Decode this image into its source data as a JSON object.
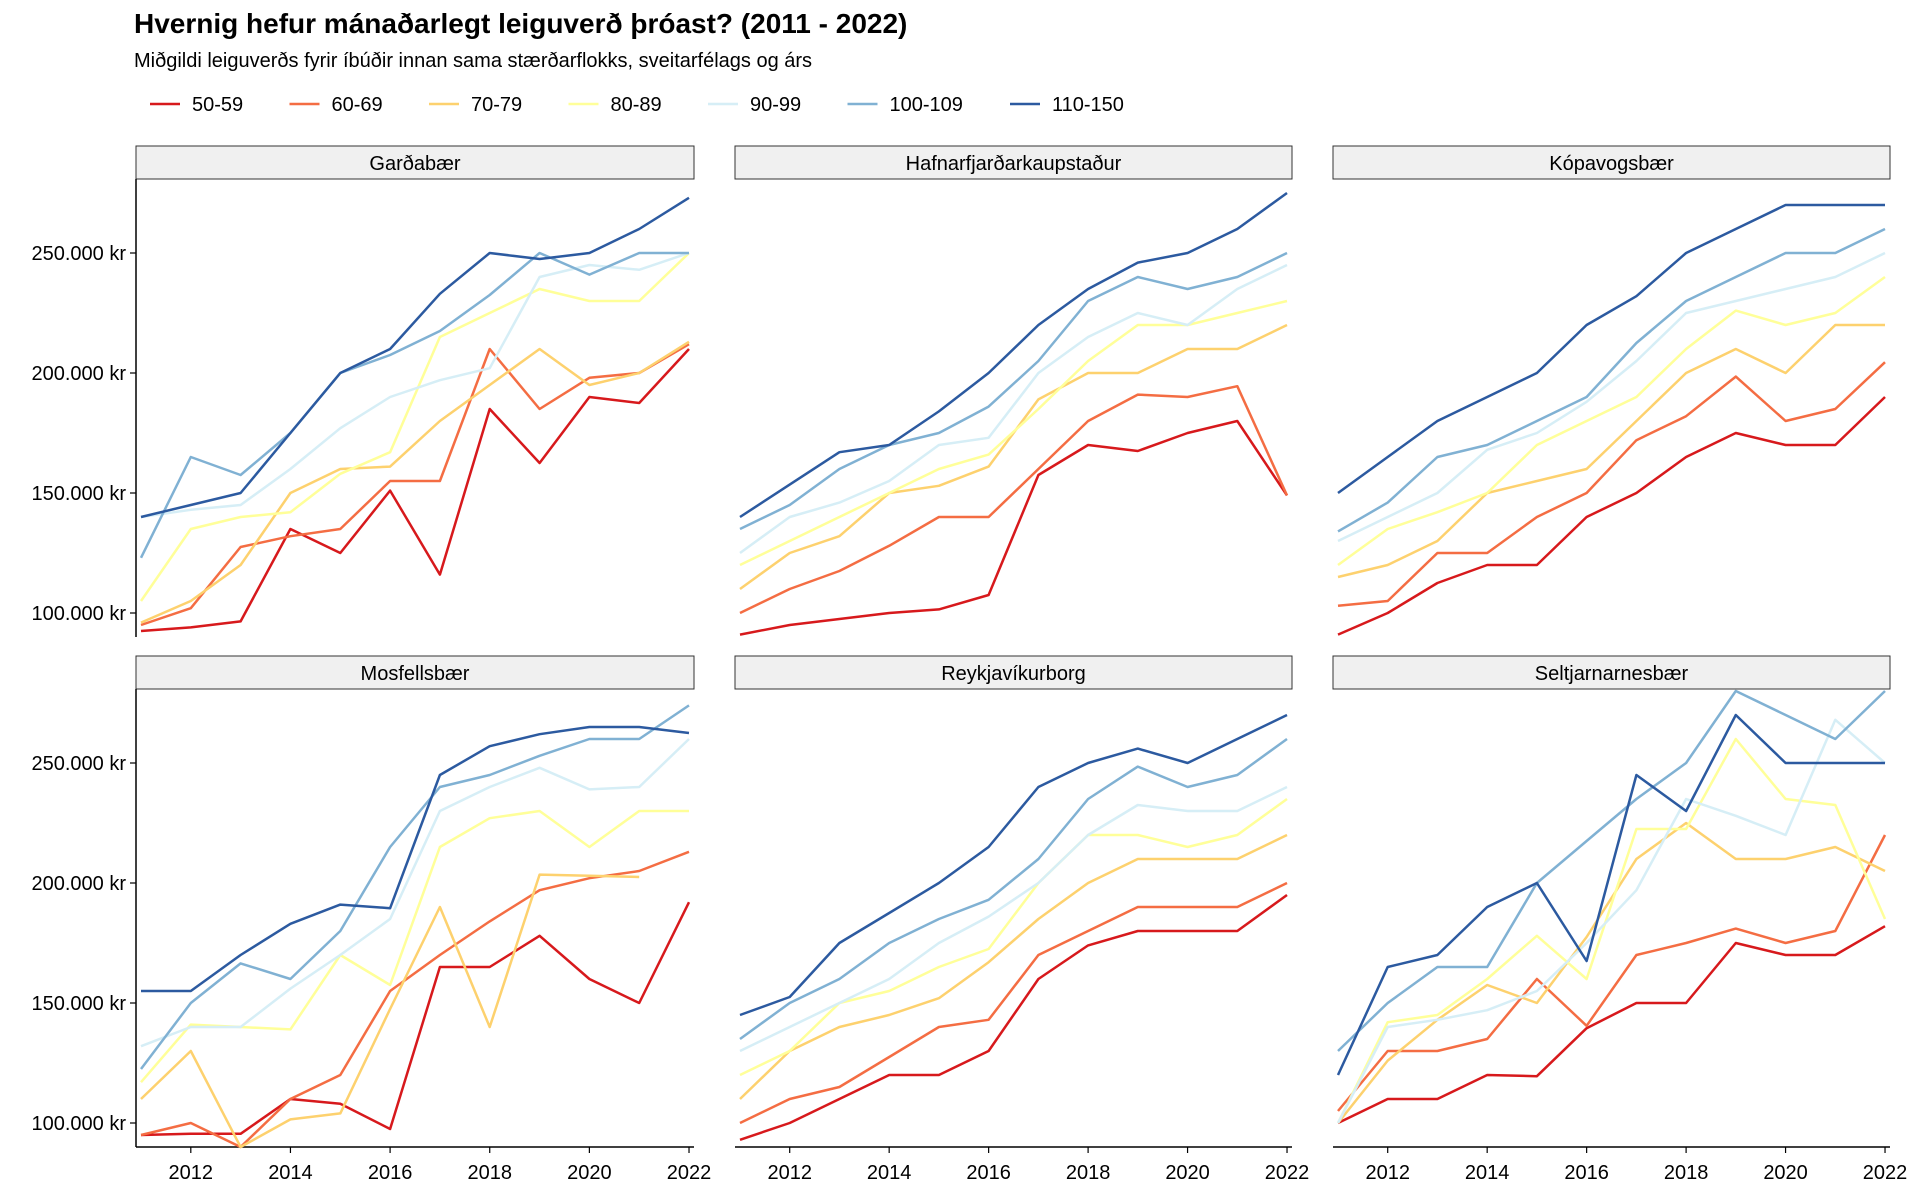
{
  "chart_data": {
    "type": "line",
    "title": "Hvernig hefur mánaðarlegt leiguverð þróast? (2011 - 2022)",
    "subtitle": "Miðgildi leiguverðs fyrir íbúðir innan sama stærðarflokks, sveitarfélags og árs",
    "legend_position": "top",
    "x": [
      2011,
      2012,
      2013,
      2014,
      2015,
      2016,
      2017,
      2018,
      2019,
      2020,
      2021,
      2022
    ],
    "x_ticks": [
      2012,
      2014,
      2016,
      2018,
      2020,
      2022
    ],
    "y_ticks": [
      100000,
      150000,
      200000,
      250000
    ],
    "y_tick_labels": [
      "100.000 kr",
      "150.000 kr",
      "200.000 kr",
      "250.000 kr"
    ],
    "xlim": [
      2010.9,
      2022.1
    ],
    "ylim": [
      90000,
      280000
    ],
    "grid": false,
    "series_styles": [
      {
        "name": "50-59",
        "color": "#d7191c"
      },
      {
        "name": "60-69",
        "color": "#f46d43"
      },
      {
        "name": "70-79",
        "color": "#fdd16e"
      },
      {
        "name": "80-89",
        "color": "#ffff99"
      },
      {
        "name": "90-99",
        "color": "#d6eef6"
      },
      {
        "name": "100-109",
        "color": "#80b1d3"
      },
      {
        "name": "110-150",
        "color": "#2c5aa0"
      }
    ],
    "panels": [
      {
        "name": "Garðabær",
        "series": [
          {
            "name": "50-59",
            "values": [
              92500,
              94000,
              96500,
              135000,
              125000,
              151000,
              116000,
              185000,
              162500,
              190000,
              187500,
              210000
            ]
          },
          {
            "name": "60-69",
            "values": [
              95000,
              102000,
              127500,
              132000,
              135000,
              155000,
              155000,
              210000,
              185000,
              198000,
              200000,
              212000
            ]
          },
          {
            "name": "70-79",
            "values": [
              96000,
              105000,
              120000,
              150000,
              160000,
              161000,
              180000,
              195000,
              210000,
              195000,
              200000,
              213000
            ]
          },
          {
            "name": "80-89",
            "values": [
              105000,
              135000,
              140000,
              142000,
              158000,
              167000,
              215000,
              225000,
              235000,
              230000,
              230000,
              250000
            ]
          },
          {
            "name": "90-99",
            "values": [
              140000,
              143000,
              145000,
              160000,
              177000,
              190000,
              197000,
              202000,
              240000,
              245000,
              243000,
              250000
            ]
          },
          {
            "name": "100-109",
            "values": [
              123000,
              165000,
              157500,
              175000,
              200000,
              207500,
              217500,
              232500,
              250000,
              241000,
              250000,
              250000
            ]
          },
          {
            "name": "110-150",
            "values": [
              140000,
              145000,
              150000,
              175000,
              200000,
              210000,
              233000,
              250000,
              247500,
              250000,
              260000,
              273000
            ]
          }
        ]
      },
      {
        "name": "Hafnarfjarðarkaupstaður",
        "series": [
          {
            "name": "50-59",
            "values": [
              91000,
              95000,
              97500,
              100000,
              101500,
              107500,
              157500,
              170000,
              167500,
              175000,
              180000,
              149000
            ]
          },
          {
            "name": "60-69",
            "values": [
              100000,
              110000,
              117500,
              128000,
              140000,
              140000,
              160000,
              180000,
              191000,
              190000,
              194500,
              149000
            ]
          },
          {
            "name": "70-79",
            "values": [
              110000,
              125000,
              132000,
              150000,
              153000,
              161000,
              189000,
              200000,
              200000,
              210000,
              210000,
              220000
            ]
          },
          {
            "name": "80-89",
            "values": [
              120000,
              130000,
              140000,
              150000,
              160000,
              166000,
              185000,
              205000,
              220000,
              220000,
              225000,
              230000
            ]
          },
          {
            "name": "90-99",
            "values": [
              125000,
              140000,
              146000,
              155000,
              170000,
              173000,
              200000,
              215000,
              225000,
              220000,
              235000,
              245000
            ]
          },
          {
            "name": "100-109",
            "values": [
              135000,
              145000,
              160000,
              170000,
              175000,
              186000,
              205000,
              230000,
              240000,
              235000,
              240000,
              250000
            ]
          },
          {
            "name": "110-150",
            "values": [
              140000,
              153500,
              167000,
              170000,
              184000,
              200000,
              220000,
              235000,
              246000,
              250000,
              260000,
              275000
            ]
          }
        ]
      },
      {
        "name": "Kópavogsbær",
        "series": [
          {
            "name": "50-59",
            "values": [
              91000,
              100000,
              112500,
              120000,
              120000,
              140000,
              150000,
              165000,
              175000,
              170000,
              170000,
              190000
            ]
          },
          {
            "name": "60-69",
            "values": [
              103000,
              105000,
              125000,
              125000,
              140000,
              150000,
              172000,
              182000,
              198500,
              180000,
              185000,
              204500
            ]
          },
          {
            "name": "70-79",
            "values": [
              115000,
              120000,
              130000,
              150000,
              155000,
              160000,
              180000,
              200000,
              210000,
              200000,
              220000,
              220000
            ]
          },
          {
            "name": "80-89",
            "values": [
              120000,
              135000,
              142000,
              150000,
              170000,
              180000,
              190000,
              210000,
              226000,
              220000,
              225000,
              240000
            ]
          },
          {
            "name": "90-99",
            "values": [
              130000,
              140000,
              150000,
              168000,
              175000,
              188000,
              205000,
              225000,
              230000,
              235000,
              240000,
              250000
            ]
          },
          {
            "name": "100-109",
            "values": [
              134000,
              146000,
              165000,
              170000,
              180000,
              190000,
              212500,
              230000,
              240000,
              250000,
              250000,
              260000
            ]
          },
          {
            "name": "110-150",
            "values": [
              150000,
              165000,
              180000,
              190000,
              200000,
              220000,
              232000,
              250000,
              260000,
              270000,
              270000,
              270000
            ]
          }
        ]
      },
      {
        "name": "Mosfellsbær",
        "series": [
          {
            "name": "50-59",
            "values": [
              95000,
              95500,
              95500,
              110000,
              108000,
              97500,
              165000,
              165000,
              178000,
              160000,
              150000,
              192000
            ]
          },
          {
            "name": "60-69",
            "values": [
              95000,
              100000,
              90000,
              110000,
              120000,
              155000,
              170000,
              184000,
              197000,
              202000,
              205000,
              213000
            ]
          },
          {
            "name": "70-79",
            "values": [
              110000,
              130000,
              90000,
              101500,
              104000,
              147500,
              190000,
              140000,
              203500,
              203000,
              202500,
              null
            ]
          },
          {
            "name": "80-89",
            "values": [
              117000,
              141000,
              140000,
              139000,
              170000,
              157500,
              215000,
              227000,
              230000,
              215000,
              230000,
              230000
            ]
          },
          {
            "name": "90-99",
            "values": [
              132000,
              140000,
              140000,
              156000,
              170000,
              185000,
              230000,
              240000,
              248000,
              239000,
              240000,
              260000
            ]
          },
          {
            "name": "100-109",
            "values": [
              122500,
              150000,
              166500,
              160000,
              180000,
              215000,
              240000,
              245000,
              253000,
              260000,
              260000,
              274000
            ]
          },
          {
            "name": "110-150",
            "values": [
              155000,
              155000,
              170000,
              183000,
              191000,
              189500,
              245000,
              257000,
              262000,
              265000,
              265000,
              262500
            ]
          }
        ]
      },
      {
        "name": "Reykjavíkurborg",
        "series": [
          {
            "name": "50-59",
            "values": [
              93000,
              100000,
              110000,
              120000,
              120000,
              130000,
              160000,
              174000,
              180000,
              180000,
              180000,
              195000
            ]
          },
          {
            "name": "60-69",
            "values": [
              100000,
              110000,
              115000,
              127500,
              140000,
              143000,
              170000,
              180000,
              190000,
              190000,
              190000,
              200000
            ]
          },
          {
            "name": "70-79",
            "values": [
              110000,
              130000,
              140000,
              145000,
              152000,
              167000,
              185000,
              200000,
              210000,
              210000,
              210000,
              220000
            ]
          },
          {
            "name": "80-89",
            "values": [
              120000,
              130000,
              150000,
              155000,
              165000,
              172500,
              200000,
              220000,
              220000,
              215000,
              220000,
              235000
            ]
          },
          {
            "name": "90-99",
            "values": [
              130000,
              140000,
              150000,
              160000,
              175000,
              186000,
              200000,
              220000,
              232500,
              230000,
              230000,
              240000
            ]
          },
          {
            "name": "100-109",
            "values": [
              135000,
              150000,
              160000,
              175000,
              185000,
              193000,
              210000,
              235000,
              248500,
              240000,
              245000,
              260000
            ]
          },
          {
            "name": "110-150",
            "values": [
              145000,
              152500,
              175000,
              187500,
              200000,
              215000,
              240000,
              250000,
              256000,
              250000,
              260000,
              270000
            ]
          }
        ]
      },
      {
        "name": "Seltjarnarnesbær",
        "series": [
          {
            "name": "50-59",
            "values": [
              100000,
              110000,
              110000,
              120000,
              119500,
              139500,
              150000,
              150000,
              175000,
              170000,
              170000,
              182000
            ]
          },
          {
            "name": "60-69",
            "values": [
              105000,
              130000,
              130000,
              135000,
              160000,
              140500,
              170000,
              175000,
              181000,
              175000,
              180000,
              220000
            ]
          },
          {
            "name": "70-79",
            "values": [
              100000,
              126000,
              143000,
              157500,
              150000,
              177500,
              210000,
              225000,
              210000,
              210000,
              215000,
              205000
            ]
          },
          {
            "name": "80-89",
            "values": [
              100000,
              142000,
              145000,
              160000,
              178000,
              160000,
              222500,
              222500,
              260000,
              235000,
              232500,
              185000
            ]
          },
          {
            "name": "90-99",
            "values": [
              100000,
              140000,
              143000,
              147000,
              155000,
              175000,
              197000,
              235000,
              228000,
              220000,
              268000,
              250000
            ]
          },
          {
            "name": "100-109",
            "values": [
              130000,
              150000,
              165000,
              165000,
              200000,
              217500,
              235000,
              250000,
              280000,
              270000,
              260000,
              280000
            ]
          },
          {
            "name": "110-150",
            "values": [
              120000,
              165000,
              170000,
              190000,
              200000,
              167500,
              245000,
              230000,
              270000,
              250000,
              250000,
              250000
            ]
          }
        ]
      }
    ]
  }
}
